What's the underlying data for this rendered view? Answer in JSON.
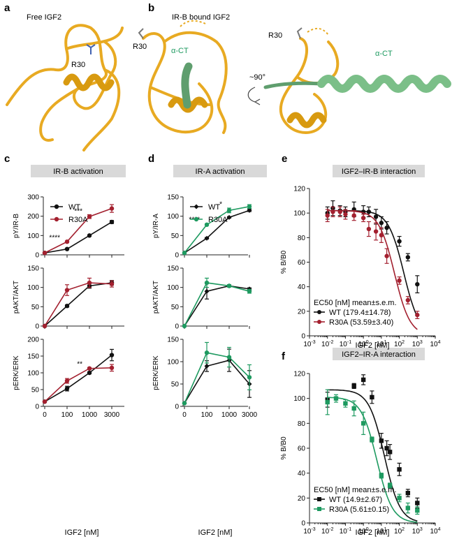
{
  "colors": {
    "wt": "#111111",
    "r30a": "#a3202f",
    "iraGreen": "#1e9a60",
    "protein": "#e8aa22",
    "helixGreen": "#7bbf88",
    "banner": "#d9d9d9"
  },
  "panels": {
    "a": {
      "label": "a",
      "title": "Free IGF2",
      "residue": "R30"
    },
    "b": {
      "label": "b",
      "title": "IR-B bound IGF2",
      "residue": "R30",
      "residue2": "R30",
      "helix": "α-CT",
      "helix2": "α-CT",
      "rotation": "~90°"
    },
    "c": {
      "label": "c",
      "banner": "IR-B activation",
      "xlabel": "IGF2 [nM]"
    },
    "d": {
      "label": "d",
      "banner": "IR-A activation",
      "xlabel": "IGF2 [nM]"
    },
    "e": {
      "label": "e",
      "banner": "IGF2–IR-B interaction",
      "xlabel": "IGF2 [nM]"
    },
    "f": {
      "label": "f",
      "banner": "IGF2–IR-A interaction",
      "xlabel": "IGF2 [nM]"
    }
  },
  "chart_data": [
    {
      "id": "c-top",
      "type": "line",
      "ylabel": "pY/IR-B",
      "ylim": [
        0,
        300
      ],
      "yticks": [
        0,
        100,
        200,
        300
      ],
      "categories": [
        "0",
        "100",
        "1000",
        "3000"
      ],
      "series": [
        {
          "name": "WT",
          "values": [
            10,
            30,
            100,
            170
          ],
          "err": [
            2,
            2,
            3,
            8
          ]
        },
        {
          "name": "R30A",
          "values": [
            10,
            68,
            198,
            240
          ],
          "err": [
            2,
            4,
            10,
            20
          ]
        }
      ],
      "annotations": [
        {
          "text": "****",
          "x": 1,
          "y": 78
        },
        {
          "text": "***",
          "x": 2,
          "y": 215
        }
      ],
      "legend": "top-left"
    },
    {
      "id": "c-mid",
      "type": "line",
      "ylabel": "pAKT/AKT",
      "ylim": [
        0,
        150
      ],
      "yticks": [
        0,
        50,
        100,
        150
      ],
      "categories": [
        "0",
        "100",
        "1000",
        "3000"
      ],
      "series": [
        {
          "name": "WT",
          "values": [
            0,
            52,
            104,
            112
          ],
          "err": [
            0,
            3,
            6,
            6
          ]
        },
        {
          "name": "R30A",
          "values": [
            0,
            93,
            112,
            109
          ],
          "err": [
            0,
            14,
            12,
            8
          ]
        }
      ]
    },
    {
      "id": "c-bot",
      "type": "line",
      "ylabel": "pERK/ERK",
      "ylim": [
        0,
        200
      ],
      "yticks": [
        0,
        50,
        100,
        150,
        200
      ],
      "categories": [
        "0",
        "100",
        "1000",
        "3000"
      ],
      "xticklabels": [
        "0",
        "100",
        "1000",
        "3000"
      ],
      "series": [
        {
          "name": "WT",
          "values": [
            14,
            53,
            100,
            153
          ],
          "err": [
            2,
            7,
            3,
            17
          ]
        },
        {
          "name": "R30A",
          "values": [
            14,
            76,
            113,
            115
          ],
          "err": [
            2,
            7,
            3,
            10
          ]
        }
      ],
      "annotations": [
        {
          "text": "**",
          "x": 2,
          "y": 120
        }
      ]
    },
    {
      "id": "d-top",
      "type": "line",
      "ylabel": "pY/IR-A",
      "ylim": [
        0,
        150
      ],
      "yticks": [
        0,
        50,
        100,
        150
      ],
      "categories": [
        "0",
        "100",
        "1000",
        "3000"
      ],
      "series": [
        {
          "name": "WT",
          "values": [
            5,
            43,
            97,
            115
          ],
          "err": [
            1,
            2,
            2,
            3
          ]
        },
        {
          "name": "R30A",
          "values": [
            5,
            78,
            115,
            125
          ],
          "err": [
            1,
            2,
            6,
            5
          ]
        }
      ],
      "annotations": [
        {
          "text": "****",
          "x": 1,
          "y": 86
        },
        {
          "text": "*",
          "x": 2,
          "y": 126
        }
      ],
      "legend": "top-left"
    },
    {
      "id": "d-mid",
      "type": "line",
      "ylabel": "pAKT/AKT",
      "ylim": [
        0,
        150
      ],
      "yticks": [
        0,
        50,
        100,
        150
      ],
      "categories": [
        "0",
        "100",
        "1000",
        "3000"
      ],
      "series": [
        {
          "name": "WT",
          "values": [
            0,
            90,
            104,
            96
          ],
          "err": [
            0,
            20,
            3,
            3
          ]
        },
        {
          "name": "R30A",
          "values": [
            0,
            112,
            104,
            90
          ],
          "err": [
            0,
            12,
            3,
            5
          ]
        }
      ]
    },
    {
      "id": "d-bot",
      "type": "line",
      "ylabel": "pERK/ERK",
      "ylim": [
        0,
        150
      ],
      "yticks": [
        0,
        50,
        100,
        150
      ],
      "categories": [
        "0",
        "100",
        "1000",
        "3000"
      ],
      "xticklabels": [
        "0",
        "100",
        "1000",
        "3000"
      ],
      "series": [
        {
          "name": "WT",
          "values": [
            7,
            90,
            103,
            50
          ],
          "err": [
            1,
            12,
            25,
            30
          ]
        },
        {
          "name": "R30A",
          "values": [
            7,
            120,
            110,
            65
          ],
          "err": [
            1,
            23,
            22,
            28
          ]
        }
      ]
    },
    {
      "id": "e",
      "type": "scatter",
      "ylabel": "% B/B0",
      "xscale": "log",
      "xlim": [
        0.001,
        10000
      ],
      "ylim": [
        0,
        120
      ],
      "yticks": [
        0,
        20,
        40,
        60,
        80,
        100,
        120
      ],
      "xticklabels": [
        "10-3",
        "10-2",
        "10-1",
        "100",
        "101",
        "102",
        "103",
        "104"
      ],
      "legend_title": "EC50 [nM] mean±s.e.m.",
      "series": [
        {
          "name": "WT (179.4±14.78)",
          "marker": "circle",
          "ec50": 179.4,
          "top": 102,
          "x": [
            0.01,
            0.02,
            0.05,
            0.1,
            0.3,
            1,
            2,
            5,
            10,
            20,
            100,
            300,
            1000
          ],
          "y": [
            100,
            104,
            102,
            101,
            103,
            101,
            101,
            97,
            92,
            88,
            77,
            64,
            42
          ],
          "err": [
            5,
            6,
            4,
            4,
            6,
            5,
            4,
            6,
            5,
            5,
            4,
            3,
            7
          ]
        },
        {
          "name": "R30A (53.59±3.40)",
          "marker": "circle",
          "ec50": 53.59,
          "top": 102,
          "x": [
            0.01,
            0.02,
            0.05,
            0.1,
            0.3,
            1,
            2,
            5,
            10,
            20,
            100,
            300,
            1000
          ],
          "y": [
            98,
            101,
            101,
            99,
            98,
            96,
            87,
            85,
            82,
            65,
            45,
            29,
            17
          ],
          "err": [
            5,
            4,
            4,
            4,
            4,
            3,
            6,
            7,
            6,
            6,
            3,
            3,
            3
          ]
        }
      ]
    },
    {
      "id": "f",
      "type": "scatter",
      "ylabel": "% B/B0",
      "xscale": "log",
      "xlim": [
        0.001,
        10000
      ],
      "ylim": [
        0,
        120
      ],
      "yticks": [
        0,
        20,
        40,
        60,
        80,
        100,
        120
      ],
      "xticklabels": [
        "10-3",
        "10-2",
        "10-1",
        "100",
        "101",
        "102",
        "103",
        "104"
      ],
      "legend_title": "EC50 [nM] mean±s.e.m.",
      "series": [
        {
          "name": "WT (14.9±2.67)",
          "marker": "square",
          "ec50": 14.9,
          "top": 107,
          "x": [
            0.01,
            0.3,
            1,
            3,
            10,
            20,
            30,
            100,
            300,
            1000
          ],
          "y": [
            99,
            110,
            115,
            101,
            66,
            60,
            57,
            43,
            24,
            16
          ],
          "err": [
            6,
            2,
            4,
            5,
            6,
            6,
            6,
            5,
            3,
            4
          ]
        },
        {
          "name": "R30A (5.61±0.15)",
          "marker": "square",
          "ec50": 5.61,
          "top": 101,
          "x": [
            0.01,
            0.03,
            0.1,
            0.3,
            1,
            3,
            10,
            30,
            100,
            300,
            1000
          ],
          "y": [
            97,
            100,
            96,
            92,
            80,
            67,
            38,
            30,
            20,
            12,
            10
          ],
          "err": [
            10,
            3,
            3,
            6,
            9,
            2,
            2,
            2,
            3,
            4,
            3
          ]
        }
      ]
    }
  ]
}
